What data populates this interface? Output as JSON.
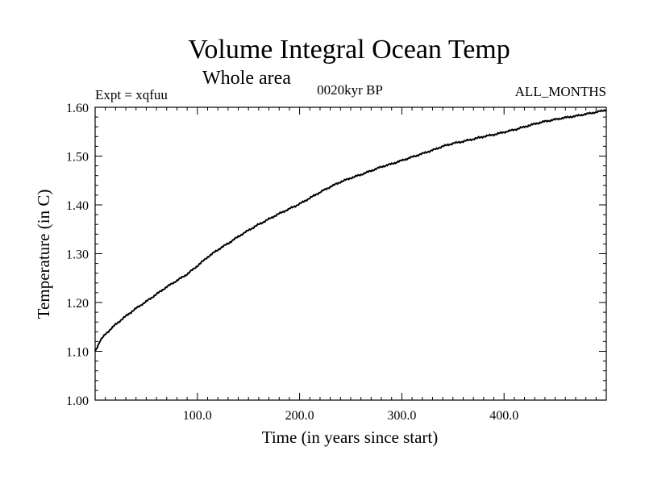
{
  "chart_data": {
    "type": "line",
    "title": "Volume Integral Ocean Temp",
    "subtitle": "Whole area",
    "experiment_label": "Expt = xqfuu",
    "period_label": "0020kyr BP",
    "months_label": "ALL_MONTHS",
    "xlabel": "Time (in years since start)",
    "ylabel": "Temperature (in C)",
    "xlim": [
      0,
      500
    ],
    "ylim": [
      1.0,
      1.6
    ],
    "x_ticks": [
      100,
      200,
      300,
      400
    ],
    "x_tick_labels": [
      "100.0",
      "200.0",
      "300.0",
      "400.0"
    ],
    "y_ticks": [
      1.0,
      1.1,
      1.2,
      1.3,
      1.4,
      1.5,
      1.6
    ],
    "y_tick_labels": [
      "1.00",
      "1.10",
      "1.20",
      "1.30",
      "1.40",
      "1.50",
      "1.60"
    ],
    "grid": false,
    "series": [
      {
        "name": "Volume integral ocean temperature",
        "x": [
          0,
          5,
          10,
          20,
          30,
          40,
          50,
          60,
          70,
          80,
          90,
          100,
          110,
          120,
          130,
          140,
          150,
          160,
          170,
          180,
          190,
          200,
          210,
          220,
          230,
          240,
          250,
          260,
          270,
          280,
          290,
          300,
          310,
          320,
          330,
          340,
          350,
          360,
          370,
          380,
          390,
          400,
          410,
          420,
          430,
          440,
          450,
          460,
          470,
          480,
          490,
          500
        ],
        "y": [
          1.1,
          1.122,
          1.135,
          1.155,
          1.172,
          1.188,
          1.202,
          1.217,
          1.232,
          1.245,
          1.258,
          1.275,
          1.293,
          1.308,
          1.321,
          1.335,
          1.348,
          1.36,
          1.371,
          1.382,
          1.392,
          1.402,
          1.414,
          1.426,
          1.437,
          1.447,
          1.455,
          1.462,
          1.47,
          1.478,
          1.484,
          1.491,
          1.498,
          1.505,
          1.512,
          1.52,
          1.526,
          1.53,
          1.535,
          1.54,
          1.544,
          1.549,
          1.554,
          1.56,
          1.566,
          1.571,
          1.575,
          1.579,
          1.582,
          1.586,
          1.59,
          1.595
        ]
      }
    ]
  }
}
